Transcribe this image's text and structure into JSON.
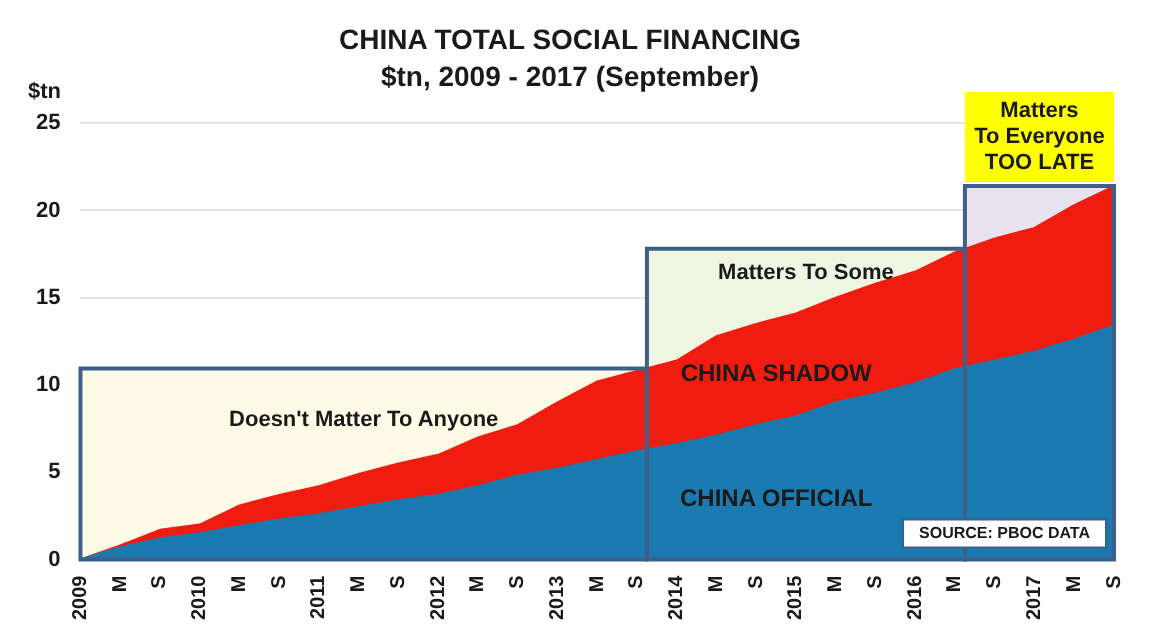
{
  "chart_data": {
    "type": "area",
    "title": "CHINA TOTAL SOCIAL FINANCING",
    "subtitle": "$tn, 2009 - 2017 (September)",
    "ylabel": "$tn",
    "x": [
      "2009-01",
      "2009-05",
      "2009-09",
      "2010-01",
      "2010-05",
      "2010-09",
      "2011-01",
      "2011-05",
      "2011-09",
      "2012-01",
      "2012-05",
      "2012-09",
      "2013-01",
      "2013-05",
      "2013-09",
      "2014-01",
      "2014-05",
      "2014-09",
      "2015-01",
      "2015-05",
      "2015-09",
      "2016-01",
      "2016-05",
      "2016-09",
      "2017-01",
      "2017-05",
      "2017-09"
    ],
    "stacked": true,
    "series": [
      {
        "name": "CHINA OFFICIAL",
        "color": "#1b7bb0",
        "values": [
          0,
          0.7,
          1.2,
          1.5,
          1.9,
          2.3,
          2.6,
          3.0,
          3.4,
          3.7,
          4.2,
          4.8,
          5.2,
          5.7,
          6.2,
          6.6,
          7.1,
          7.7,
          8.2,
          9.0,
          9.5,
          10.1,
          10.9,
          11.4,
          11.9,
          12.6,
          13.4
        ]
      },
      {
        "name": "CHINA SHADOW",
        "color": "#f01c10",
        "values": [
          0,
          0.1,
          0.5,
          0.5,
          1.2,
          1.4,
          1.6,
          1.9,
          2.1,
          2.3,
          2.8,
          2.9,
          3.8,
          4.5,
          4.6,
          4.8,
          5.7,
          5.8,
          5.9,
          6.0,
          6.3,
          6.4,
          6.7,
          7.0,
          7.1,
          7.7,
          8.0
        ]
      }
    ],
    "xlim": [
      "2009-01",
      "2017-09"
    ],
    "xticks": [
      {
        "value": "2009-01",
        "label": "2009"
      },
      {
        "value": "2009-05",
        "label": "M"
      },
      {
        "value": "2009-09",
        "label": "S"
      },
      {
        "value": "2010-01",
        "label": "2010"
      },
      {
        "value": "2010-05",
        "label": "M"
      },
      {
        "value": "2010-09",
        "label": "S"
      },
      {
        "value": "2011-01",
        "label": "2011"
      },
      {
        "value": "2011-05",
        "label": "M"
      },
      {
        "value": "2011-09",
        "label": "S"
      },
      {
        "value": "2012-01",
        "label": "2012"
      },
      {
        "value": "2012-05",
        "label": "M"
      },
      {
        "value": "2012-09",
        "label": "S"
      },
      {
        "value": "2013-01",
        "label": "2013"
      },
      {
        "value": "2013-05",
        "label": "M"
      },
      {
        "value": "2013-09",
        "label": "S"
      },
      {
        "value": "2014-01",
        "label": "2014"
      },
      {
        "value": "2014-05",
        "label": "M"
      },
      {
        "value": "2014-09",
        "label": "S"
      },
      {
        "value": "2015-01",
        "label": "2015"
      },
      {
        "value": "2015-05",
        "label": "M"
      },
      {
        "value": "2015-09",
        "label": "S"
      },
      {
        "value": "2016-01",
        "label": "2016"
      },
      {
        "value": "2016-05",
        "label": "M"
      },
      {
        "value": "2016-09",
        "label": "S"
      },
      {
        "value": "2017-01",
        "label": "2017"
      },
      {
        "value": "2017-05",
        "label": "M"
      },
      {
        "value": "2017-09",
        "label": "S"
      }
    ],
    "ylim": [
      0,
      25
    ],
    "yticks": [
      0,
      5,
      10,
      15,
      20,
      25
    ],
    "grid": "y",
    "bands": [
      {
        "axis": "x",
        "from": "2009-01",
        "to": "2013-10",
        "label": "Doesn't Matter To Anyone",
        "color": "#fffbe6"
      },
      {
        "axis": "x",
        "from": "2013-10",
        "to": "2016-06",
        "label": "Matters To Some",
        "color": "#eef5e1"
      },
      {
        "axis": "x",
        "from": "2016-06",
        "to": "2017-09",
        "label": "Matters\nTo Everyone\nTOO LATE",
        "color": "#e8e2f0"
      }
    ],
    "annotations": [
      "SOURCE: PBOC DATA"
    ]
  }
}
